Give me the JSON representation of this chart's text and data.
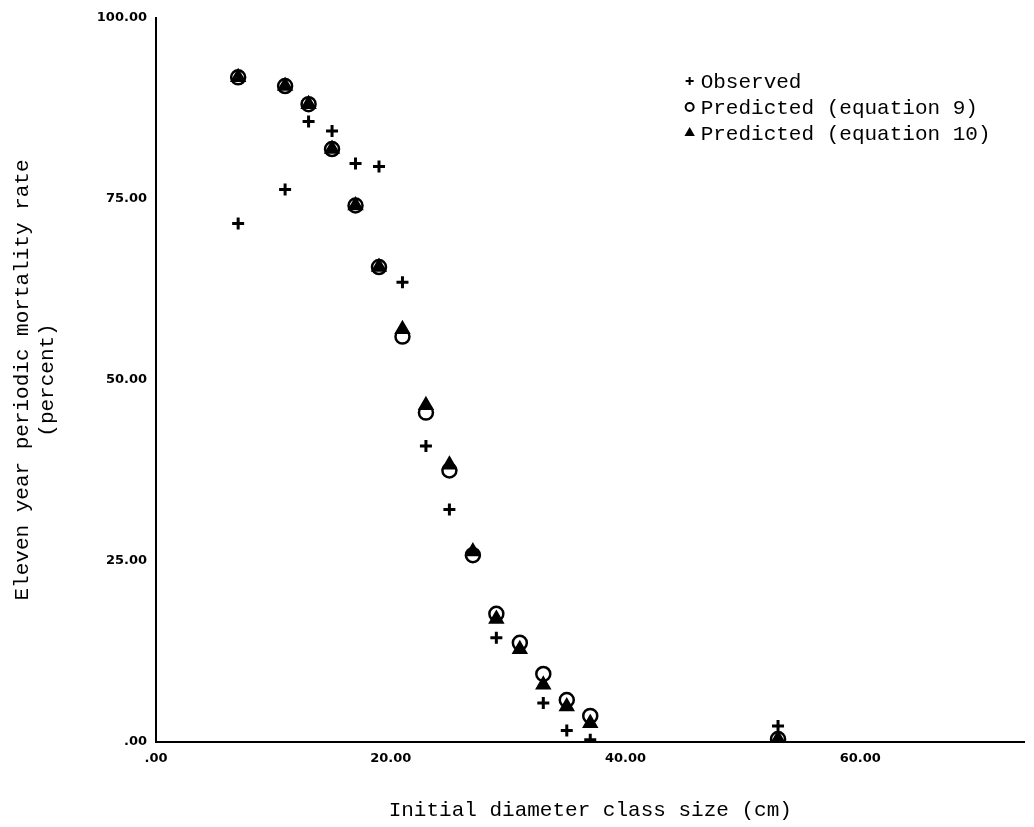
{
  "chart_data": {
    "type": "scatter",
    "xlabel": "Initial diameter class size (cm)",
    "ylabel": "Eleven year periodic mortality rate\n(percent)",
    "xlim": [
      0,
      74
    ],
    "xticks": [
      {
        "value": 0,
        "label": ".00"
      },
      {
        "value": 20,
        "label": "20.00"
      },
      {
        "value": 40,
        "label": "40.00"
      },
      {
        "value": 60,
        "label": "60.00"
      }
    ],
    "ylim": [
      0,
      100
    ],
    "yticks": [
      {
        "value": 0,
        "label": ".00"
      },
      {
        "value": 25,
        "label": "25.00"
      },
      {
        "value": 50,
        "label": "50.00"
      },
      {
        "value": 75,
        "label": "75.00"
      },
      {
        "value": 100,
        "label": "100.00"
      }
    ],
    "grid": false,
    "legend": "top right",
    "x": [
      7,
      11,
      13,
      15,
      17,
      19,
      21,
      23,
      25,
      27,
      29,
      31,
      33,
      35,
      37,
      53
    ],
    "series": [
      {
        "name": "Observed",
        "color": "#000000",
        "marker": "cross",
        "values": [
          71.6,
          76.3,
          85.7,
          84.4,
          79.9,
          79.5,
          63.5,
          40.9,
          32.1,
          null,
          14.4,
          null,
          5.4,
          1.6,
          0.3,
          2.2
        ]
      },
      {
        "name": "Predicted (equation 9)",
        "color": "#000000",
        "marker": "circle",
        "values": [
          91.8,
          90.6,
          88.1,
          81.9,
          74.1,
          65.6,
          56.0,
          45.5,
          37.5,
          25.8,
          17.7,
          13.7,
          9.4,
          5.8,
          3.6,
          0.4
        ]
      },
      {
        "name": "Predicted (equation 10)",
        "color": "#000000",
        "marker": "triangle",
        "values": [
          91.8,
          90.6,
          88.1,
          81.9,
          74.1,
          65.6,
          57.0,
          46.5,
          38.3,
          26.3,
          17.0,
          12.8,
          7.9,
          4.9,
          2.6,
          0.4
        ]
      }
    ]
  }
}
